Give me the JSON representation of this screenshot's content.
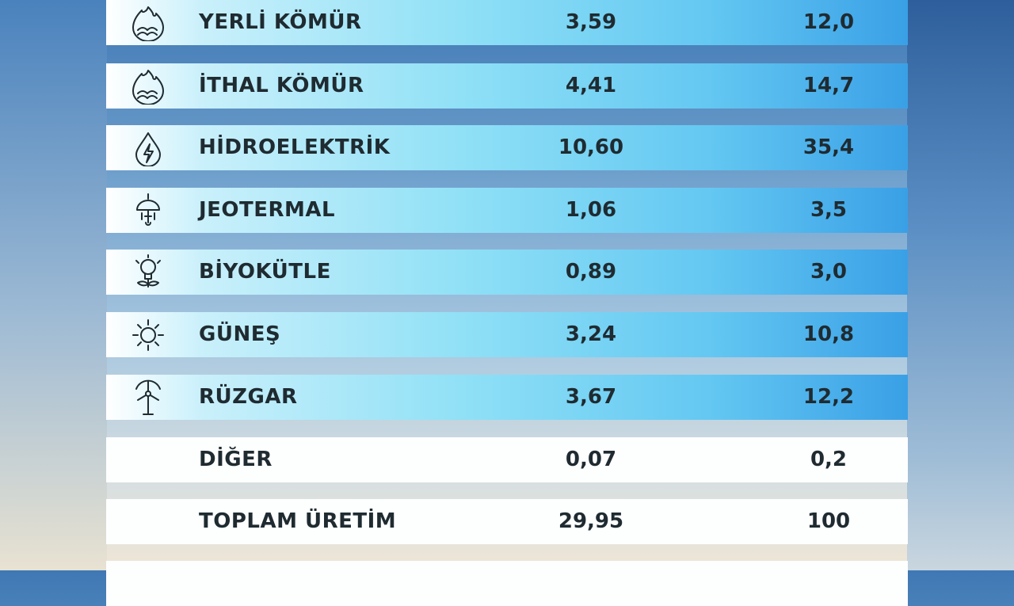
{
  "rows": [
    {
      "label": "YERLİ KÖMÜR",
      "value": "3,59",
      "share": "12,0",
      "icon": "coal-flame-icon"
    },
    {
      "label": "İTHAL KÖMÜR",
      "value": "4,41",
      "share": "14,7",
      "icon": "coal-flame-icon"
    },
    {
      "label": "HİDROELEKTRİK",
      "value": "10,60",
      "share": "35,4",
      "icon": "water-drop-lightning-icon"
    },
    {
      "label": "JEOTERMAL",
      "value": "1,06",
      "share": "3,5",
      "icon": "geothermal-icon"
    },
    {
      "label": "BİYOKÜTLE",
      "value": "0,89",
      "share": "3,0",
      "icon": "biomass-bulb-icon"
    },
    {
      "label": "GÜNEŞ",
      "value": "3,24",
      "share": "10,8",
      "icon": "sun-icon"
    },
    {
      "label": "RÜZGAR",
      "value": "3,67",
      "share": "12,2",
      "icon": "wind-turbine-icon"
    },
    {
      "label": "DİĞER",
      "value": "0,07",
      "share": "0,2",
      "icon": ""
    },
    {
      "label": "TOPLAM ÜRETİM",
      "value": "29,95",
      "share": "100",
      "icon": ""
    }
  ]
}
